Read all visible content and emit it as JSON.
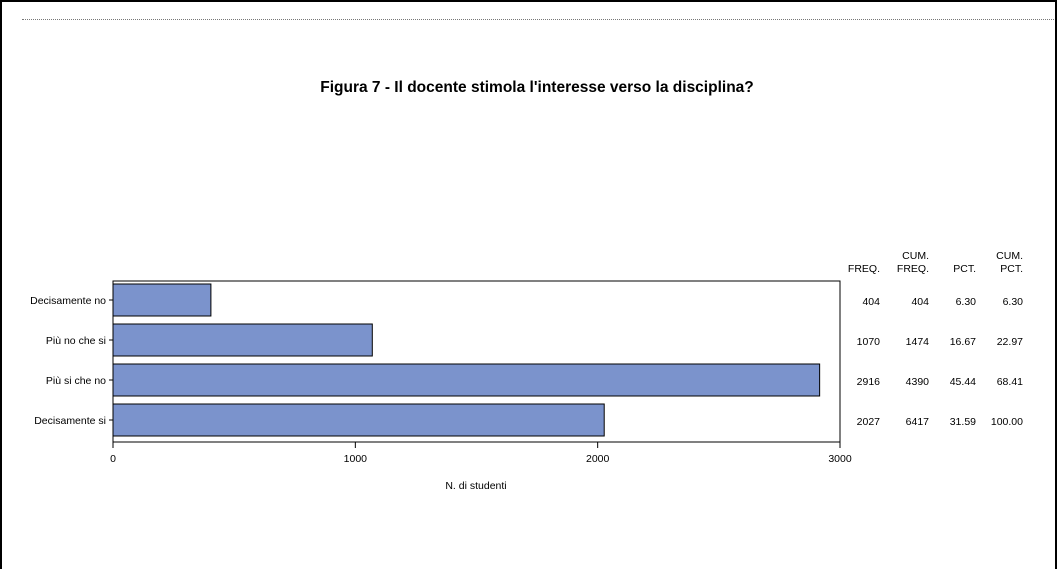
{
  "chart_data": {
    "type": "bar",
    "orientation": "horizontal",
    "title": "Figura 7 - Il docente stimola l'interesse verso la disciplina?",
    "xlabel": "N. di studenti",
    "ylabel": "",
    "xlim": [
      0,
      3000
    ],
    "xticks": [
      0,
      1000,
      2000,
      3000
    ],
    "categories": [
      "Decisamente no",
      "Più no che si",
      "Più si che no",
      "Decisamente si"
    ],
    "values": [
      404,
      1070,
      2916,
      2027
    ],
    "bar_color": "#7b93cc",
    "table": {
      "columns": [
        {
          "line1": "",
          "line2": "FREQ."
        },
        {
          "line1": "CUM.",
          "line2": "FREQ."
        },
        {
          "line1": "",
          "line2": "PCT."
        },
        {
          "line1": "CUM.",
          "line2": "PCT."
        }
      ],
      "rows": [
        [
          "404",
          "404",
          "6.30",
          "6.30"
        ],
        [
          "1070",
          "1474",
          "16.67",
          "22.97"
        ],
        [
          "2916",
          "4390",
          "45.44",
          "68.41"
        ],
        [
          "2027",
          "6417",
          "31.59",
          "100.00"
        ]
      ]
    }
  }
}
